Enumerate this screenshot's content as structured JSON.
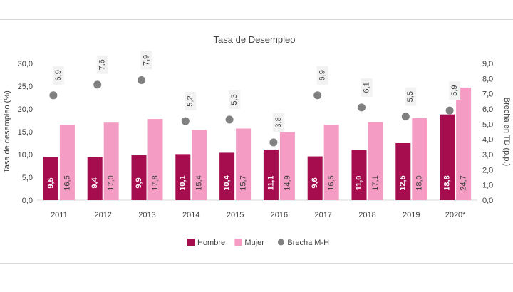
{
  "chart_data": {
    "type": "bar",
    "title": "Tasa de Desempleo",
    "ylabel": "Tasa de desempleo (%)",
    "y2label": "Brecha en TD (p.p.)",
    "categories": [
      "2011",
      "2012",
      "2013",
      "2014",
      "2015",
      "2016",
      "2017",
      "2018",
      "2019",
      "2020*"
    ],
    "ylim": [
      0,
      30
    ],
    "y_ticks": [
      "0,0",
      "5,0",
      "10,0",
      "15,0",
      "20,0",
      "25,0",
      "30,0"
    ],
    "y2lim": [
      0,
      9
    ],
    "y2_ticks": [
      "0,0",
      "1,0",
      "2,0",
      "3,0",
      "4,0",
      "5,0",
      "6,0",
      "7,0",
      "8,0",
      "9,0"
    ],
    "series": [
      {
        "name": "Hombre",
        "kind": "bar",
        "axis": "left",
        "color": "#a50d4f",
        "values": [
          9.5,
          9.4,
          9.9,
          10.1,
          10.4,
          11.1,
          9.6,
          11.0,
          12.5,
          18.8
        ],
        "labels": [
          "9,5",
          "9,4",
          "9,9",
          "10,1",
          "10,4",
          "11,1",
          "9,6",
          "11,0",
          "12,5",
          "18,8"
        ]
      },
      {
        "name": "Mujer",
        "kind": "bar",
        "axis": "left",
        "color": "#f59cc4",
        "values": [
          16.5,
          17.0,
          17.8,
          15.4,
          15.7,
          14.9,
          16.5,
          17.1,
          18.0,
          24.7
        ],
        "labels": [
          "16,5",
          "17,0",
          "17,8",
          "15,4",
          "15,7",
          "14,9",
          "16,5",
          "17,1",
          "18,0",
          "24,7"
        ]
      },
      {
        "name": "Brecha M-H",
        "kind": "scatter",
        "axis": "right",
        "color": "#808080",
        "values": [
          6.9,
          7.6,
          7.9,
          5.2,
          5.3,
          3.8,
          6.9,
          6.1,
          5.5,
          5.9
        ],
        "labels": [
          "6,9",
          "7,6",
          "7,9",
          "5,2",
          "5,3",
          "3,8",
          "6,9",
          "6,1",
          "5,5",
          "5,9"
        ]
      }
    ],
    "legend_position": "bottom",
    "grid": false
  }
}
